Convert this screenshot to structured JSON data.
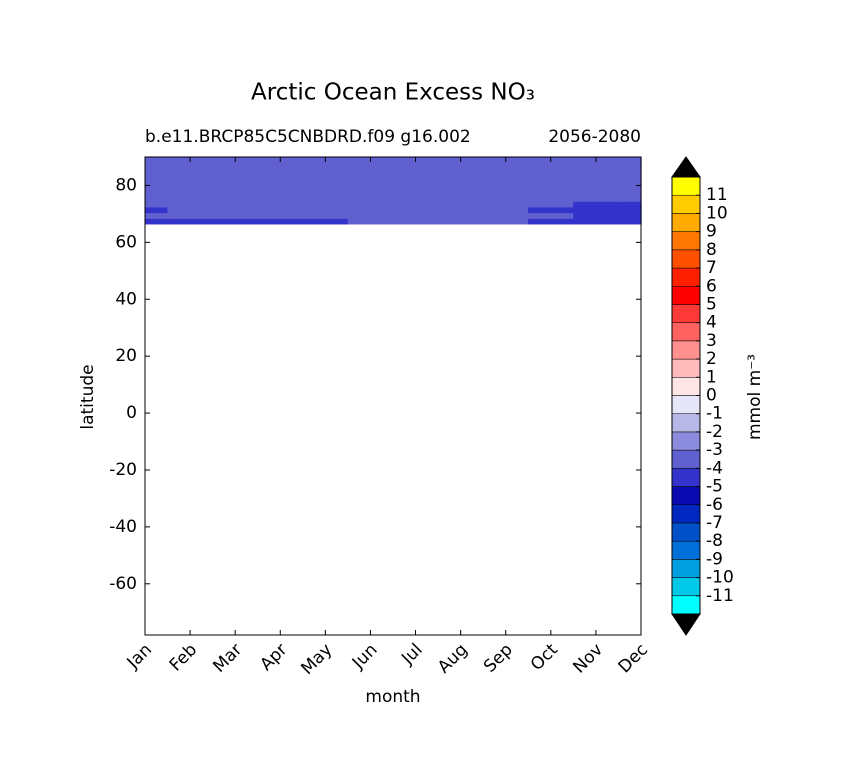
{
  "chart_data": {
    "type": "contour",
    "title": "Arctic Ocean Excess NO₃",
    "subtitle_left": "b.e11.BRCP85C5CNBDRD.f09 g16.002",
    "subtitle_right": "2056-2080",
    "xlabel": "month",
    "ylabel": "latitude",
    "colorbar_label": "mmol m⁻³",
    "categories": [
      "Jan",
      "Feb",
      "Mar",
      "Apr",
      "May",
      "Jun",
      "Jul",
      "Aug",
      "Sep",
      "Oct",
      "Nov",
      "Dec"
    ],
    "y": [
      67.5,
      69.5,
      71.5,
      73.5,
      75.5,
      77.5,
      79.5,
      81.5,
      83.5,
      85.5,
      87.5,
      89.5
    ],
    "z": [
      [
        -4.5,
        -4.5,
        -4.5,
        -4.5,
        -4.5,
        -3.5,
        -3.5,
        -3.5,
        -3.5,
        -4.5,
        -4.5,
        -4.5
      ],
      [
        -3.5,
        -3.5,
        -3.5,
        -3.5,
        -3.5,
        -3.5,
        -3.5,
        -3.5,
        -3.5,
        -3.5,
        -4.5,
        -4.5
      ],
      [
        -4.5,
        -3.5,
        -3.5,
        -3.5,
        -3.5,
        -3.5,
        -3.5,
        -3.5,
        -3.5,
        -4.5,
        -4.5,
        -4.5
      ],
      [
        -3.5,
        -3.5,
        -3.5,
        -3.5,
        -3.5,
        -3.5,
        -3.5,
        -3.5,
        -3.5,
        -3.5,
        -4.5,
        -4.5
      ],
      [
        -3.5,
        -3.5,
        -3.5,
        -3.5,
        -3.5,
        -3.5,
        -3.5,
        -3.5,
        -3.5,
        -3.5,
        -3.5,
        -3.5
      ],
      [
        -3.5,
        -3.5,
        -3.5,
        -3.5,
        -3.5,
        -3.5,
        -3.5,
        -3.5,
        -3.5,
        -3.5,
        -3.5,
        -3.5
      ],
      [
        -3.5,
        -3.5,
        -3.5,
        -3.5,
        -3.5,
        -3.5,
        -3.5,
        -3.5,
        -3.5,
        -3.5,
        -3.5,
        -3.5
      ],
      [
        -3.5,
        -3.5,
        -3.5,
        -3.5,
        -3.5,
        -3.5,
        -3.5,
        -3.5,
        -3.5,
        -3.5,
        -3.5,
        -3.5
      ],
      [
        -3.5,
        -3.5,
        -3.5,
        -3.5,
        -3.5,
        -3.5,
        -3.5,
        -3.5,
        -3.5,
        -3.5,
        -3.5,
        -3.5
      ],
      [
        -3.5,
        -3.5,
        -3.5,
        -3.5,
        -3.5,
        -3.5,
        -3.5,
        -3.5,
        -3.5,
        -3.5,
        -3.5,
        -3.5
      ],
      [
        -3.5,
        -3.5,
        -3.5,
        -3.5,
        -3.5,
        -3.5,
        -3.5,
        -3.5,
        -3.5,
        -3.5,
        -3.5,
        -3.5
      ],
      [
        -3.5,
        -3.5,
        -3.5,
        -3.5,
        -3.5,
        -3.5,
        -3.5,
        -3.5,
        -3.5,
        -3.5,
        -3.5,
        -3.5
      ]
    ],
    "ylim": [
      -78,
      90
    ],
    "yticks": [
      -60,
      -40,
      -20,
      0,
      20,
      40,
      60,
      80
    ],
    "levels": [
      -12,
      -11,
      -10,
      -9,
      -8,
      -7,
      -6,
      -5,
      -4,
      -3,
      -2,
      -1,
      0,
      1,
      2,
      3,
      4,
      5,
      6,
      7,
      8,
      9,
      10,
      11,
      12
    ],
    "colors": [
      "#00ffff",
      "#00c8e8",
      "#00a0e0",
      "#0070d8",
      "#0050c8",
      "#0028c0",
      "#0a0ab0",
      "#3333cc",
      "#6060d0",
      "#8c8cde",
      "#b8b8e8",
      "#e6e6f8",
      "#ffe6e6",
      "#ffbbbb",
      "#ff9090",
      "#ff6060",
      "#ff3838",
      "#ff0000",
      "#ff2000",
      "#ff5000",
      "#ff7700",
      "#ffaa00",
      "#ffcc00",
      "#ffff00"
    ],
    "under_color": "#000000",
    "over_color": "#000000",
    "cbar_ticks": [
      -11,
      -10,
      -9,
      -8,
      -7,
      -6,
      -5,
      -4,
      -3,
      -2,
      -1,
      0,
      1,
      2,
      3,
      4,
      5,
      6,
      7,
      8,
      9,
      10,
      11
    ]
  }
}
